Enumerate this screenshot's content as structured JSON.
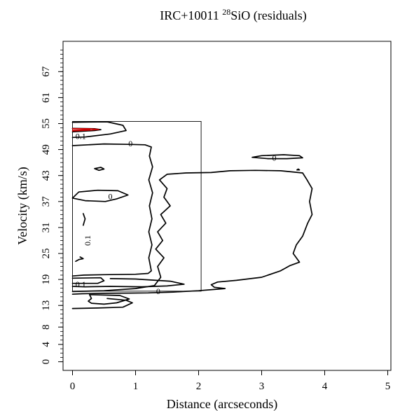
{
  "chart_data": {
    "type": "contour",
    "title": {
      "prefix": "IRC+10011 ",
      "superscript": "28",
      "suffix": "SiO (residuals)"
    },
    "xlabel": "Distance (arcseconds)",
    "ylabel": "Velocity (km/s)",
    "xlim": [
      -0.15,
      5.05
    ],
    "ylim": [
      -2,
      74
    ],
    "x_ticks": [
      0,
      1,
      2,
      3,
      4,
      5
    ],
    "y_ticks": [
      0,
      4,
      8,
      13,
      19,
      25,
      31,
      37,
      43,
      49,
      55,
      61,
      67
    ],
    "y_minor_tick_step": 1,
    "grid": false,
    "box": {
      "x": [
        0,
        2.04
      ],
      "y": [
        16.3,
        55.5
      ],
      "color": "#000000"
    },
    "contours": [
      {
        "level": "0",
        "color": "#000000",
        "points": [
          [
            0,
            55.3
          ],
          [
            0.55,
            55.4
          ],
          [
            0.8,
            54.6
          ],
          [
            0.85,
            53.4
          ],
          [
            0.6,
            52.6
          ],
          [
            0.2,
            51.9
          ],
          [
            0,
            51.8
          ]
        ]
      },
      {
        "level": "0",
        "color": "#000000",
        "points": [
          [
            0,
            49.9
          ],
          [
            0.5,
            50.3
          ],
          [
            0.88,
            50.2
          ],
          [
            1.15,
            50.1
          ],
          [
            1.25,
            49.6
          ],
          [
            1.22,
            47.5
          ],
          [
            1.27,
            45
          ],
          [
            1.21,
            42
          ],
          [
            1.27,
            39
          ],
          [
            1.22,
            36
          ],
          [
            1.26,
            33
          ],
          [
            1.21,
            30
          ],
          [
            1.26,
            27
          ],
          [
            1.21,
            24
          ],
          [
            1.25,
            21
          ],
          [
            1.2,
            20.4
          ],
          [
            1.0,
            20.2
          ],
          [
            0.5,
            20.1
          ],
          [
            0.18,
            20
          ],
          [
            0,
            19.8
          ]
        ]
      },
      {
        "level": "0",
        "color": "#000000",
        "points": [
          [
            0.35,
            44.6
          ],
          [
            0.45,
            44.9
          ],
          [
            0.5,
            44.5
          ],
          [
            0.42,
            44.2
          ],
          [
            0.35,
            44.6
          ]
        ]
      },
      {
        "level": "0",
        "color": "#000000",
        "points": [
          [
            0,
            37.8
          ],
          [
            0.1,
            39.2
          ],
          [
            0.4,
            39.6
          ],
          [
            0.72,
            39.5
          ],
          [
            0.88,
            38.5
          ],
          [
            0.7,
            37.6
          ],
          [
            0.52,
            37
          ],
          [
            0.2,
            37.2
          ],
          [
            0,
            37.8
          ]
        ]
      },
      {
        "level": "0",
        "color": "#000000",
        "points": [
          [
            0.6,
            19.2
          ],
          [
            1.0,
            19.1
          ],
          [
            1.55,
            18.6
          ],
          [
            1.77,
            17.9
          ],
          [
            1.5,
            17.5
          ],
          [
            1.1,
            17.3
          ],
          [
            0.6,
            17.4
          ],
          [
            0.2,
            17.3
          ],
          [
            0,
            17.4
          ]
        ]
      },
      {
        "level": "0",
        "color": "#000000",
        "points": [
          [
            0,
            16.2
          ],
          [
            0.5,
            16.4
          ],
          [
            1.0,
            16.9
          ],
          [
            1.3,
            17.6
          ],
          [
            1.4,
            19.5
          ],
          [
            1.35,
            22
          ],
          [
            1.45,
            24
          ],
          [
            1.32,
            26
          ],
          [
            1.43,
            28
          ],
          [
            1.35,
            30
          ],
          [
            1.48,
            32
          ],
          [
            1.4,
            34
          ],
          [
            1.55,
            36
          ],
          [
            1.45,
            38
          ],
          [
            1.5,
            40
          ],
          [
            1.38,
            42
          ],
          [
            1.5,
            43.3
          ],
          [
            1.8,
            43.6
          ],
          [
            2.2,
            43.7
          ],
          [
            2.5,
            44.1
          ],
          [
            2.9,
            44.2
          ],
          [
            3.3,
            44.1
          ],
          [
            3.65,
            43.6
          ],
          [
            3.72,
            42
          ],
          [
            3.8,
            40
          ],
          [
            3.76,
            37
          ],
          [
            3.8,
            34
          ],
          [
            3.73,
            32
          ],
          [
            3.65,
            29
          ],
          [
            3.55,
            27
          ],
          [
            3.5,
            25
          ],
          [
            3.6,
            23
          ],
          [
            3.45,
            22.2
          ],
          [
            3.3,
            21
          ],
          [
            3.0,
            19.5
          ],
          [
            2.6,
            18.8
          ],
          [
            2.3,
            18.4
          ],
          [
            2.2,
            17.8
          ],
          [
            2.25,
            17.2
          ],
          [
            2.42,
            16.9
          ],
          [
            2.25,
            16.7
          ],
          [
            2.0,
            16.4
          ],
          [
            1.6,
            16.1
          ],
          [
            1.2,
            15.9
          ],
          [
            0.9,
            15.85
          ],
          [
            0.5,
            15.8
          ],
          [
            0.15,
            15.7
          ],
          [
            0,
            15.6
          ]
        ]
      },
      {
        "level": "0",
        "color": "#000000",
        "points": [
          [
            0.27,
            15.5
          ],
          [
            0.75,
            15.3
          ],
          [
            0.9,
            14.5
          ],
          [
            0.7,
            13.6
          ],
          [
            0.5,
            13.3
          ],
          [
            0.3,
            13.5
          ],
          [
            0.25,
            14
          ],
          [
            0.3,
            14.6
          ],
          [
            0.27,
            15.5
          ]
        ]
      },
      {
        "level": "0",
        "color": "#000000",
        "points": [
          [
            0,
            12.3
          ],
          [
            0.4,
            12.4
          ],
          [
            0.8,
            12.6
          ],
          [
            0.95,
            13.6
          ],
          [
            0.85,
            14.2
          ],
          [
            0.55,
            14.6
          ]
        ]
      },
      {
        "level": "0",
        "color": "#000000",
        "points": [
          [
            2.85,
            47.2
          ],
          [
            3.0,
            47.6
          ],
          [
            3.35,
            47.8
          ],
          [
            3.6,
            47.6
          ],
          [
            3.65,
            47.1
          ],
          [
            3.4,
            46.9
          ],
          [
            3.1,
            46.9
          ],
          [
            2.85,
            47.2
          ]
        ]
      },
      {
        "level": "0",
        "color": "#000000",
        "points": [
          [
            3.56,
            44.3
          ],
          [
            3.58,
            44.5
          ],
          [
            3.6,
            44.3
          ],
          [
            3.56,
            44.3
          ]
        ]
      },
      {
        "level": "0",
        "color": "#000000",
        "points": [
          [
            0.17,
            31.5
          ],
          [
            0.2,
            33
          ],
          [
            0.17,
            34.2
          ]
        ]
      },
      {
        "level": "0",
        "color": "#000000",
        "points": [
          [
            0.05,
            23.2
          ],
          [
            0.1,
            23.6
          ],
          [
            0.17,
            23.8
          ],
          [
            0.12,
            24.2
          ]
        ]
      },
      {
        "level": "0",
        "color": "#000000",
        "points": [
          [
            0,
            19.3
          ],
          [
            0.45,
            19.4
          ],
          [
            0.5,
            18.7
          ],
          [
            0.4,
            18.1
          ],
          [
            0,
            18.1
          ]
        ]
      },
      {
        "level": "0.1",
        "color": "#000000",
        "points": [
          [
            0,
            53.1
          ],
          [
            0.35,
            53.4
          ],
          [
            0.45,
            53.6
          ],
          [
            0.35,
            53.8
          ],
          [
            0,
            53.9
          ]
        ]
      },
      {
        "level": "0.2",
        "color": "#cc0000",
        "points": [
          [
            0,
            53.3
          ],
          [
            0.3,
            53.5
          ],
          [
            0.42,
            53.65
          ],
          [
            0.3,
            53.8
          ],
          [
            0,
            53.85
          ]
        ]
      },
      {
        "level": "0.3",
        "color": "#cc0000",
        "points": [
          [
            0,
            53.45
          ],
          [
            0.2,
            53.55
          ],
          [
            0.28,
            53.65
          ],
          [
            0.2,
            53.75
          ],
          [
            0,
            53.8
          ]
        ]
      }
    ],
    "annotations": [
      {
        "text": "0.1",
        "x": 0.13,
        "y": 51.9
      },
      {
        "text": "0",
        "x": 0.92,
        "y": 50.15
      },
      {
        "text": "0",
        "x": 0.6,
        "y": 38.0
      },
      {
        "text": "0",
        "x": 3.2,
        "y": 46.9
      },
      {
        "text": "0.1",
        "x": 0.13,
        "y": 17.7
      },
      {
        "text": "0",
        "x": 1.36,
        "y": 16.1
      },
      {
        "text": "0.1",
        "x": 0.25,
        "y": 28.0,
        "rotate": -90
      }
    ]
  }
}
